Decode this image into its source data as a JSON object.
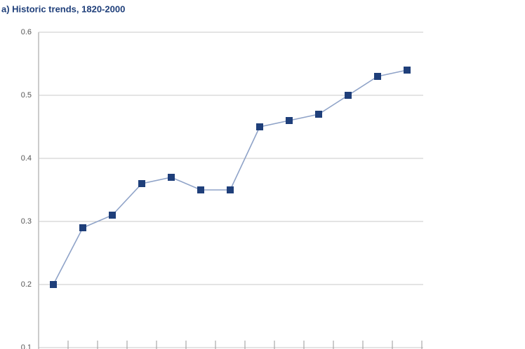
{
  "chart_data": {
    "type": "line",
    "title": "a) Historic trends, 1820-2000",
    "categories": [
      null,
      null,
      null,
      null,
      null,
      null,
      null,
      null,
      null,
      null,
      null,
      null,
      null
    ],
    "values": [
      0.2,
      0.29,
      0.31,
      0.36,
      0.37,
      0.35,
      0.35,
      0.45,
      0.46,
      0.47,
      0.5,
      0.53,
      0.54
    ],
    "line_color": "#8fa3c8",
    "marker_color": "#1f3f7a",
    "ylim": [
      0.1,
      0.6
    ],
    "yticks": [
      0.1,
      0.2,
      0.3,
      0.4,
      0.5,
      0.6
    ],
    "grid": true
  }
}
